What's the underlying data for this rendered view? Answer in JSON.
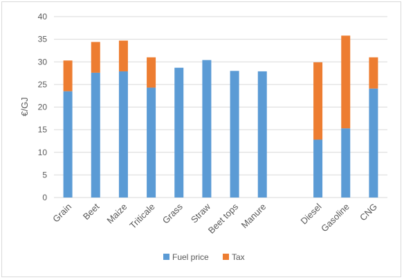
{
  "chart_data": {
    "type": "bar",
    "stacked": true,
    "title": "",
    "xlabel": "",
    "ylabel": "€/GJ",
    "ylim": [
      0,
      40
    ],
    "yticks": [
      0,
      5,
      10,
      15,
      20,
      25,
      30,
      35,
      40
    ],
    "grid": true,
    "legend_position": "bottom",
    "categories": [
      "Grain",
      "Beet",
      "Maize",
      "Triticale",
      "Grass",
      "Straw",
      "Beet tops",
      "Manure",
      "Diesel",
      "Gasoline",
      "CNG"
    ],
    "gap_before_index": 8,
    "series": [
      {
        "name": "Fuel price",
        "color": "#5b9bd5",
        "values": [
          23.5,
          27.6,
          27.9,
          24.3,
          28.7,
          30.4,
          28.0,
          27.9,
          12.8,
          15.3,
          24.1
        ]
      },
      {
        "name": "Tax",
        "color": "#ed7d31",
        "values": [
          6.8,
          6.8,
          6.8,
          6.7,
          0,
          0,
          0,
          0,
          17.1,
          20.5,
          6.9
        ]
      }
    ]
  }
}
